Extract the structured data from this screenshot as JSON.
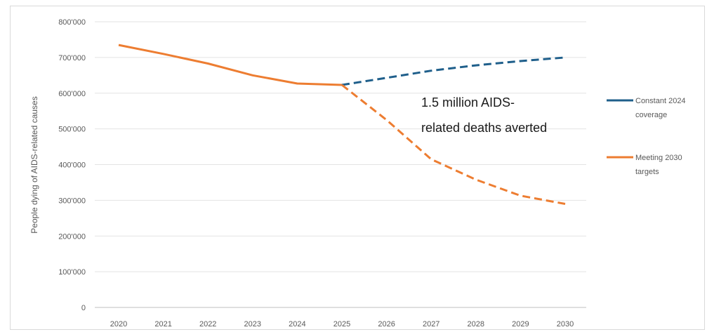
{
  "chart_data": {
    "type": "line",
    "title": "",
    "xlabel": "",
    "ylabel": "People dying of AIDS-related causes",
    "x": [
      2020,
      2021,
      2022,
      2023,
      2024,
      2025,
      2026,
      2027,
      2028,
      2029,
      2030
    ],
    "x_tick_labels": [
      "2020",
      "2021",
      "2022",
      "2023",
      "2024",
      "2025",
      "2026",
      "2027",
      "2028",
      "2029",
      "2030"
    ],
    "ylim": [
      0,
      800000
    ],
    "y_tick_labels": [
      "0",
      "100'000",
      "200'000",
      "300'000",
      "400'000",
      "500'000",
      "600'000",
      "700'000",
      "800'000"
    ],
    "grid": "horizontal",
    "legend_position": "right",
    "historical": {
      "x": [
        2020,
        2021,
        2022,
        2023,
        2024,
        2025
      ],
      "values": [
        735000,
        710000,
        683000,
        650000,
        627000,
        623000
      ],
      "color": "#ed7d31",
      "style": "solid"
    },
    "series": [
      {
        "name": "Constant 2024 coverage",
        "legend_lines": [
          "Constant 2024",
          "coverage"
        ],
        "x": [
          2025,
          2026,
          2027,
          2028,
          2029,
          2030
        ],
        "values": [
          623000,
          643000,
          663000,
          678000,
          690000,
          700000
        ],
        "color": "#1f5f8b",
        "style": "dashed"
      },
      {
        "name": "Meeting 2030 targets",
        "legend_lines": [
          "Meeting 2030",
          "targets"
        ],
        "x": [
          2025,
          2026,
          2027,
          2028,
          2029,
          2030
        ],
        "values": [
          623000,
          525000,
          415000,
          358000,
          313000,
          290000
        ],
        "color": "#ed7d31",
        "style": "dashed"
      }
    ],
    "annotation": {
      "lines": [
        "1.5 million AIDS-",
        "related deaths averted"
      ]
    }
  }
}
